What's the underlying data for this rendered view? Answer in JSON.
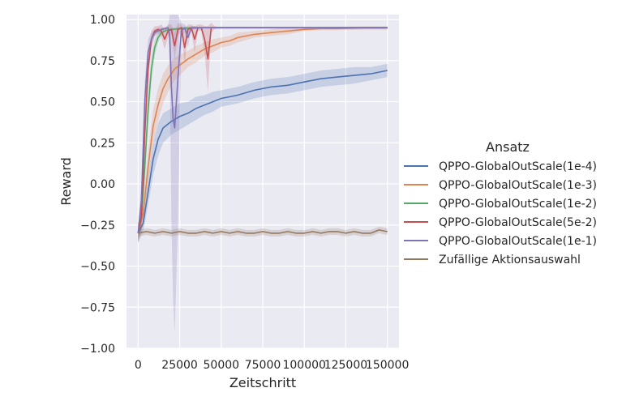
{
  "chart_data": {
    "type": "line",
    "xlabel": "Zeitschritt",
    "ylabel": "Reward",
    "xlim": [
      -7000,
      157000
    ],
    "ylim": [
      -1.0,
      1.03
    ],
    "x_ticks": [
      0,
      25000,
      50000,
      75000,
      100000,
      125000,
      150000
    ],
    "x_tick_labels": [
      "0",
      "25000",
      "50000",
      "75000",
      "100000",
      "125000",
      "150000"
    ],
    "y_ticks": [
      -1.0,
      -0.75,
      -0.5,
      -0.25,
      0.0,
      0.25,
      0.5,
      0.75,
      1.0
    ],
    "y_tick_labels": [
      "−1.00",
      "−0.75",
      "−0.50",
      "−0.25",
      "0.00",
      "0.25",
      "0.50",
      "0.75",
      "1.00"
    ],
    "grid": true,
    "legend": {
      "title": "Ansatz",
      "placement": "right"
    },
    "series": [
      {
        "name": "QPPO-GlobalOutScale(1e-4)",
        "color": "#4c72b0",
        "x": [
          0,
          3000,
          6000,
          9000,
          12000,
          15000,
          20000,
          25000,
          30000,
          35000,
          40000,
          45000,
          50000,
          55000,
          60000,
          70000,
          80000,
          90000,
          100000,
          110000,
          120000,
          130000,
          140000,
          150000
        ],
        "y": [
          -0.3,
          -0.24,
          -0.05,
          0.15,
          0.27,
          0.34,
          0.38,
          0.41,
          0.43,
          0.46,
          0.48,
          0.5,
          0.52,
          0.53,
          0.54,
          0.57,
          0.59,
          0.6,
          0.62,
          0.64,
          0.65,
          0.66,
          0.67,
          0.69
        ],
        "band": [
          0.06,
          0.05,
          0.08,
          0.1,
          0.1,
          0.09,
          0.08,
          0.08,
          0.07,
          0.07,
          0.06,
          0.06,
          0.05,
          0.05,
          0.05,
          0.05,
          0.05,
          0.05,
          0.05,
          0.05,
          0.05,
          0.05,
          0.04,
          0.04
        ]
      },
      {
        "name": "QPPO-GlobalOutScale(1e-3)",
        "color": "#dd8452",
        "x": [
          0,
          3000,
          6000,
          9000,
          12000,
          15000,
          18000,
          22000,
          26000,
          30000,
          35000,
          40000,
          45000,
          50000,
          55000,
          60000,
          70000,
          80000,
          90000,
          100000,
          110000,
          120000,
          135000,
          150000
        ],
        "y": [
          -0.3,
          -0.18,
          0.1,
          0.35,
          0.48,
          0.58,
          0.64,
          0.7,
          0.73,
          0.76,
          0.79,
          0.82,
          0.84,
          0.86,
          0.87,
          0.89,
          0.91,
          0.92,
          0.93,
          0.94,
          0.945,
          0.945,
          0.948,
          0.948
        ],
        "band": [
          0.06,
          0.08,
          0.1,
          0.1,
          0.1,
          0.09,
          0.08,
          0.07,
          0.06,
          0.05,
          0.05,
          0.04,
          0.04,
          0.03,
          0.03,
          0.03,
          0.02,
          0.02,
          0.02,
          0.01,
          0.01,
          0.01,
          0.01,
          0.01
        ]
      },
      {
        "name": "QPPO-GlobalOutScale(1e-2)",
        "color": "#55a868",
        "x": [
          0,
          2000,
          4000,
          6000,
          8000,
          10000,
          12000,
          14000,
          17000,
          20000,
          25000,
          30000,
          40000,
          60000,
          90000,
          120000,
          150000
        ],
        "y": [
          -0.3,
          -0.2,
          0.1,
          0.45,
          0.7,
          0.83,
          0.89,
          0.92,
          0.935,
          0.94,
          0.945,
          0.948,
          0.95,
          0.95,
          0.95,
          0.95,
          0.95
        ],
        "band": [
          0.05,
          0.08,
          0.1,
          0.1,
          0.08,
          0.05,
          0.03,
          0.02,
          0.01,
          0.01,
          0.01,
          0.01,
          0.005,
          0.005,
          0.005,
          0.005,
          0.005
        ]
      },
      {
        "name": "QPPO-GlobalOutScale(5e-2)",
        "color": "#c44e52",
        "x": [
          0,
          2000,
          4000,
          6000,
          8000,
          10000,
          12000,
          14000,
          16000,
          18000,
          20000,
          22000,
          24000,
          26000,
          28000,
          30000,
          32000,
          34000,
          36000,
          38000,
          40000,
          42000,
          44000,
          46000,
          48000,
          50000,
          60000,
          80000,
          100000,
          120000,
          150000
        ],
        "y": [
          -0.3,
          -0.2,
          0.3,
          0.7,
          0.88,
          0.93,
          0.94,
          0.93,
          0.88,
          0.93,
          0.94,
          0.84,
          0.94,
          0.95,
          0.83,
          0.94,
          0.95,
          0.88,
          0.95,
          0.95,
          0.88,
          0.76,
          0.95,
          0.95,
          0.95,
          0.95,
          0.95,
          0.95,
          0.95,
          0.95,
          0.95
        ],
        "band": [
          0.05,
          0.08,
          0.1,
          0.08,
          0.05,
          0.03,
          0.02,
          0.04,
          0.06,
          0.04,
          0.03,
          0.08,
          0.04,
          0.02,
          0.1,
          0.03,
          0.02,
          0.08,
          0.02,
          0.02,
          0.08,
          0.2,
          0.03,
          0.01,
          0.005,
          0.005,
          0.005,
          0.005,
          0.005,
          0.005,
          0.005
        ]
      },
      {
        "name": "QPPO-GlobalOutScale(1e-1)",
        "color": "#8172b3",
        "x": [
          0,
          2000,
          4000,
          6000,
          8000,
          10000,
          12000,
          14000,
          16000,
          18000,
          19000,
          20000,
          21000,
          22000,
          24000,
          26000,
          28000,
          30000,
          32000,
          34000,
          36000,
          40000,
          50000,
          70000,
          100000,
          130000,
          150000
        ],
        "y": [
          -0.3,
          -0.1,
          0.5,
          0.8,
          0.88,
          0.92,
          0.93,
          0.94,
          0.945,
          0.95,
          0.9,
          0.6,
          0.4,
          0.34,
          0.65,
          0.93,
          0.95,
          0.89,
          0.95,
          0.95,
          0.95,
          0.95,
          0.95,
          0.95,
          0.95,
          0.95,
          0.95
        ],
        "band": [
          0.05,
          0.1,
          0.12,
          0.08,
          0.04,
          0.02,
          0.02,
          0.01,
          0.01,
          0.01,
          0.2,
          0.8,
          1.1,
          1.25,
          0.9,
          0.05,
          0.02,
          0.06,
          0.01,
          0.01,
          0.005,
          0.005,
          0.005,
          0.005,
          0.005,
          0.005,
          0.005
        ]
      },
      {
        "name": "Zufällige Aktionsauswahl",
        "color": "#937860",
        "x": [
          0,
          5000,
          10000,
          15000,
          20000,
          25000,
          30000,
          35000,
          40000,
          45000,
          50000,
          55000,
          60000,
          65000,
          70000,
          75000,
          80000,
          85000,
          90000,
          95000,
          100000,
          105000,
          110000,
          115000,
          120000,
          125000,
          130000,
          135000,
          140000,
          145000,
          150000
        ],
        "y": [
          -0.3,
          -0.29,
          -0.3,
          -0.29,
          -0.3,
          -0.29,
          -0.3,
          -0.3,
          -0.29,
          -0.3,
          -0.29,
          -0.3,
          -0.29,
          -0.3,
          -0.3,
          -0.29,
          -0.3,
          -0.3,
          -0.29,
          -0.3,
          -0.3,
          -0.29,
          -0.3,
          -0.29,
          -0.29,
          -0.3,
          -0.29,
          -0.3,
          -0.3,
          -0.28,
          -0.29
        ],
        "band": [
          0.02,
          0.02,
          0.02,
          0.02,
          0.02,
          0.02,
          0.02,
          0.02,
          0.02,
          0.02,
          0.02,
          0.02,
          0.02,
          0.02,
          0.02,
          0.02,
          0.02,
          0.02,
          0.02,
          0.02,
          0.02,
          0.02,
          0.02,
          0.02,
          0.02,
          0.02,
          0.02,
          0.02,
          0.02,
          0.02,
          0.02
        ]
      }
    ]
  }
}
